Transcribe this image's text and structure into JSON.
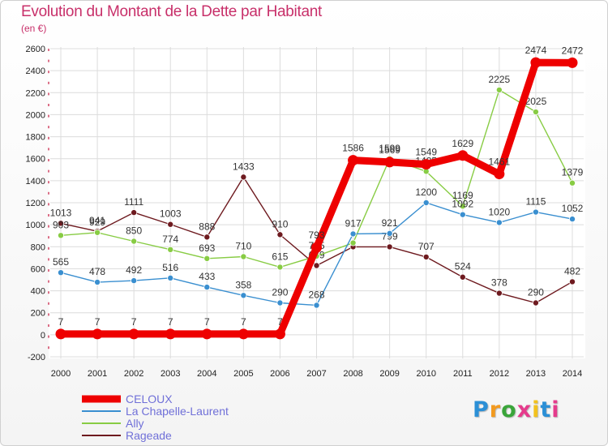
{
  "title": "Evolution du Montant de la Dette par Habitant",
  "subtitle": "(en €)",
  "logo_text": "Proxiti",
  "logo_colors": [
    "#2b8fd6",
    "#f29a1f",
    "#3aa53a",
    "#e53b8c",
    "#f2c21f",
    "#2b8fd6",
    "#e53b8c"
  ],
  "colors": {
    "frame_bg": "#ffffff",
    "grid": "#dcdcdc",
    "title": "#c8306a",
    "legend_text": "#7070d8"
  },
  "chart_data": {
    "type": "line",
    "title": "Evolution du Montant de la Dette par Habitant",
    "subtitle": "(en €)",
    "xlabel": "",
    "ylabel": "",
    "categories": [
      "2000",
      "2001",
      "2002",
      "2003",
      "2004",
      "2005",
      "2006",
      "2007",
      "2008",
      "2009",
      "2010",
      "2011",
      "2012",
      "2013",
      "2014"
    ],
    "ylim": [
      -200,
      2600
    ],
    "yticks": [
      -200,
      0,
      200,
      400,
      600,
      800,
      1000,
      1200,
      1400,
      1600,
      1800,
      2000,
      2200,
      2400,
      2600
    ],
    "grid": true,
    "legend_position": "bottom-left",
    "series": [
      {
        "name": "Rageade",
        "color": "#6e1a1f",
        "thick": false,
        "values": [
          1013,
          941,
          1111,
          1003,
          888,
          1433,
          910,
          629,
          799,
          799,
          707,
          524,
          378,
          290,
          482
        ],
        "labels": [
          "1013",
          "941",
          "1111",
          "1003",
          "888",
          "1433",
          "910",
          "629",
          "",
          "799",
          "707",
          "524",
          "378",
          "290",
          "482"
        ]
      },
      {
        "name": "Ally",
        "color": "#88cc44",
        "thick": false,
        "values": [
          903,
          929,
          850,
          774,
          693,
          710,
          615,
          715,
          835,
          1599,
          1485,
          1169,
          2225,
          2025,
          1379
        ],
        "labels": [
          "903",
          "929",
          "850",
          "774",
          "693",
          "710",
          "615",
          "715",
          "",
          "1599",
          "1485",
          "1169",
          "2225",
          "2025",
          "1379"
        ]
      },
      {
        "name": "La Chapelle-Laurent",
        "color": "#3a8fd0",
        "thick": false,
        "values": [
          565,
          478,
          492,
          516,
          433,
          358,
          290,
          268,
          917,
          921,
          1200,
          1092,
          1020,
          1115,
          1052
        ],
        "labels": [
          "565",
          "478",
          "492",
          "516",
          "433",
          "358",
          "290",
          "268",
          "917",
          "921",
          "1200",
          "1092",
          "1020",
          "1115",
          "1052"
        ]
      },
      {
        "name": "CELOUX",
        "color": "#ee0000",
        "thick": true,
        "values": [
          7,
          7,
          7,
          7,
          7,
          7,
          7,
          793,
          1586,
          1569,
          1549,
          1629,
          1461,
          2474,
          2472
        ],
        "labels": [
          "7",
          "7",
          "7",
          "7",
          "7",
          "7",
          "7",
          "793",
          "1586",
          "1569",
          "1549",
          "1629",
          "1461",
          "2474",
          "2472"
        ]
      }
    ],
    "legend": [
      "CELOUX",
      "La Chapelle-Laurent",
      "Ally",
      "Rageade"
    ]
  }
}
